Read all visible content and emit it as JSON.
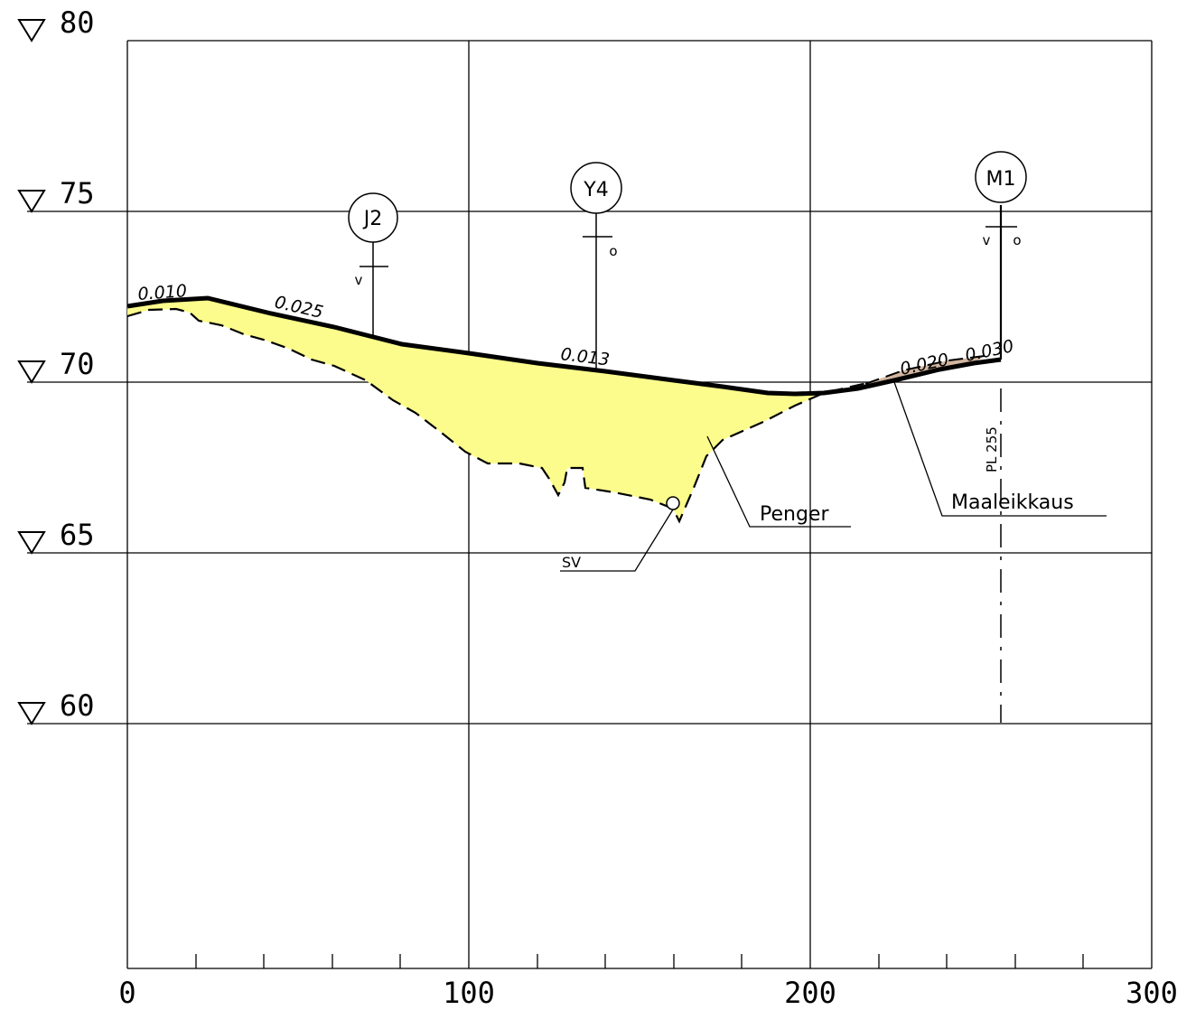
{
  "elevation_labels": [
    "80",
    "75",
    "70",
    "65",
    "60"
  ],
  "station_labels": [
    "0",
    "100",
    "200",
    "300"
  ],
  "wells": {
    "j2": {
      "id": "J2",
      "side": "v"
    },
    "y4": {
      "id": "Y4",
      "side": "o"
    },
    "m1": {
      "id": "M1",
      "side_left": "v",
      "side_right": "o"
    }
  },
  "slopes": {
    "s1": "0.010",
    "s2": "0.025",
    "s3": "0.013",
    "s4": "0.020",
    "s5": "0.030"
  },
  "annotations": {
    "penger": "Penger",
    "maaleikkaus": "Maaleikkaus",
    "sv": "SV",
    "pl": "PL 255"
  },
  "colors": {
    "embankment_fill": "#fcfc8c",
    "cut_fill": "#d2b6a0",
    "line": "#000000"
  }
}
